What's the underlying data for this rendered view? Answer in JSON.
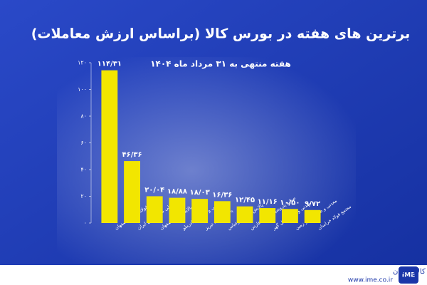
{
  "chart_data": {
    "type": "bar",
    "title": "برترین های هفته در بورس کالا (براساس ارزش معاملات)",
    "subtitle": "هفته منتهی به ۳۱ مرداد ماه ۱۴۰۴",
    "categories": [
      "فولاد مبارکه اصفهان",
      "ملی صنایع مس ایران",
      "پالایش نفت اصفهان",
      "معدنی و صنعتی چادرملو",
      "پالایش نفت تبریز",
      "پالایش نفت بندرعباس",
      "صنایع پتروشیمی خلیج فارس",
      "معدنی و صنعتی گل گهر",
      "معدنی و صنعتی گهر زمین",
      "مجتمع فولاد خراسان"
    ],
    "values": [
      114.31,
      46.36,
      20.04,
      18.88,
      18.03,
      16.36,
      12.45,
      11.16,
      10.5,
      9.72
    ],
    "value_labels": [
      "۱۱۴/۳۱",
      "۴۶/۳۶",
      "۲۰/۰۴",
      "۱۸/۸۸",
      "۱۸/۰۳",
      "۱۶/۳۶",
      "۱۲/۴۵",
      "۱۱/۱۶",
      "۱۰/۵۰",
      "۹/۷۲"
    ],
    "color": "#f2e600",
    "ylim": [
      0,
      120
    ],
    "yticks": [
      {
        "value": 0,
        "label": "۰"
      },
      {
        "value": 20,
        "label": "۲۰"
      },
      {
        "value": 40,
        "label": "۴۰"
      },
      {
        "value": 60,
        "label": "۶۰"
      },
      {
        "value": 80,
        "label": "۸۰"
      },
      {
        "value": 100,
        "label": "۱۰۰"
      },
      {
        "value": 120,
        "label": "۱۲۰"
      }
    ],
    "footer": {
      "org": "بورس کالای ایران",
      "url": "www.ime.co.ir",
      "logo": "IME"
    }
  }
}
